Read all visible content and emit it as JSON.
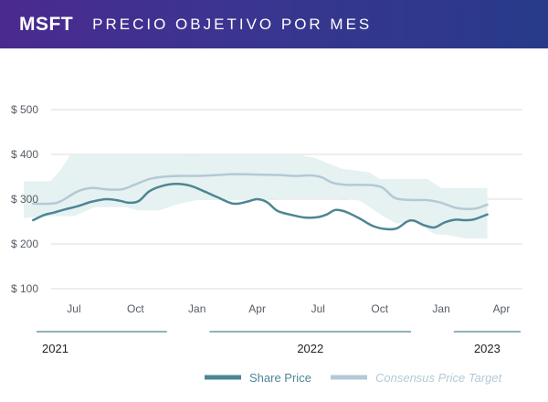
{
  "header": {
    "ticker": "MSFT",
    "title": "PRECIO OBJETIVO POR MES"
  },
  "colors": {
    "share_price": "#4d8595",
    "consensus": "#b4c9d6",
    "band": "#e6f2f1",
    "grid": "#dcdcdc",
    "header_left": "#4a2a8f",
    "header_right": "#283a8a"
  },
  "chart_data": {
    "type": "line",
    "y_ticks": [
      "$ 100",
      "$ 200",
      "$ 300",
      "$ 400",
      "$ 500"
    ],
    "y_tick_values": [
      100,
      200,
      300,
      400,
      500
    ],
    "ylim": [
      100,
      500
    ],
    "x_range": [
      "2021-05-01",
      "2023-04-30"
    ],
    "x_tick_labels": [
      {
        "label": "Jul",
        "date": "2021-07-15"
      },
      {
        "label": "Oct",
        "date": "2021-10-15"
      },
      {
        "label": "Jan",
        "date": "2022-01-15"
      },
      {
        "label": "Apr",
        "date": "2022-04-15"
      },
      {
        "label": "Jul",
        "date": "2022-07-15"
      },
      {
        "label": "Oct",
        "date": "2022-10-15"
      },
      {
        "label": "Jan",
        "date": "2023-01-15"
      },
      {
        "label": "Apr",
        "date": "2023-04-15"
      }
    ],
    "years": [
      {
        "label": "2021",
        "start": "2021-05-01",
        "end": "2021-12-31"
      },
      {
        "label": "2022",
        "start": "2022-01-01",
        "end": "2022-12-31"
      },
      {
        "label": "2023",
        "start": "2023-01-01",
        "end": "2023-04-30"
      }
    ],
    "series": [
      {
        "name": "Share Price",
        "style": "solid",
        "points": [
          [
            "2021-05-15",
            253
          ],
          [
            "2021-06-01",
            265
          ],
          [
            "2021-06-15",
            270
          ],
          [
            "2021-07-01",
            277
          ],
          [
            "2021-07-20",
            284
          ],
          [
            "2021-08-10",
            294
          ],
          [
            "2021-09-01",
            300
          ],
          [
            "2021-09-20",
            297
          ],
          [
            "2021-10-05",
            292
          ],
          [
            "2021-10-20",
            296
          ],
          [
            "2021-11-05",
            318
          ],
          [
            "2021-11-25",
            330
          ],
          [
            "2021-12-15",
            334
          ],
          [
            "2022-01-05",
            330
          ],
          [
            "2022-01-25",
            318
          ],
          [
            "2022-02-15",
            304
          ],
          [
            "2022-03-10",
            290
          ],
          [
            "2022-03-30",
            294
          ],
          [
            "2022-04-15",
            300
          ],
          [
            "2022-04-30",
            293
          ],
          [
            "2022-05-15",
            274
          ],
          [
            "2022-06-05",
            265
          ],
          [
            "2022-06-25",
            259
          ],
          [
            "2022-07-15",
            260
          ],
          [
            "2022-07-28",
            266
          ],
          [
            "2022-08-10",
            276
          ],
          [
            "2022-08-25",
            272
          ],
          [
            "2022-09-15",
            257
          ],
          [
            "2022-10-05",
            240
          ],
          [
            "2022-10-25",
            233
          ],
          [
            "2022-11-10",
            235
          ],
          [
            "2022-11-25",
            250
          ],
          [
            "2022-12-05",
            252
          ],
          [
            "2022-12-20",
            242
          ],
          [
            "2023-01-05",
            237
          ],
          [
            "2023-01-20",
            248
          ],
          [
            "2023-02-05",
            254
          ],
          [
            "2023-02-20",
            253
          ],
          [
            "2023-03-05",
            255
          ],
          [
            "2023-03-25",
            266
          ]
        ]
      },
      {
        "name": "Consensus Price Target",
        "style": "italic-legend",
        "points": [
          [
            "2021-05-15",
            290
          ],
          [
            "2021-06-10",
            290
          ],
          [
            "2021-06-25",
            295
          ],
          [
            "2021-07-20",
            317
          ],
          [
            "2021-08-10",
            325
          ],
          [
            "2021-09-01",
            322
          ],
          [
            "2021-09-25",
            322
          ],
          [
            "2021-10-15",
            333
          ],
          [
            "2021-11-05",
            345
          ],
          [
            "2021-11-25",
            350
          ],
          [
            "2021-12-20",
            352
          ],
          [
            "2022-01-15",
            352
          ],
          [
            "2022-02-15",
            354
          ],
          [
            "2022-03-15",
            356
          ],
          [
            "2022-04-15",
            355
          ],
          [
            "2022-05-15",
            354
          ],
          [
            "2022-06-10",
            352
          ],
          [
            "2022-07-05",
            353
          ],
          [
            "2022-07-20",
            349
          ],
          [
            "2022-08-05",
            337
          ],
          [
            "2022-08-25",
            332
          ],
          [
            "2022-09-15",
            332
          ],
          [
            "2022-10-05",
            331
          ],
          [
            "2022-10-20",
            325
          ],
          [
            "2022-11-05",
            304
          ],
          [
            "2022-11-20",
            299
          ],
          [
            "2022-12-10",
            298
          ],
          [
            "2022-12-25",
            298
          ],
          [
            "2023-01-15",
            292
          ],
          [
            "2023-02-05",
            281
          ],
          [
            "2023-02-25",
            278
          ],
          [
            "2023-03-10",
            280
          ],
          [
            "2023-03-25",
            288
          ]
        ]
      }
    ],
    "band": {
      "upper": [
        [
          "2021-05-01",
          340
        ],
        [
          "2021-06-10",
          340
        ],
        [
          "2021-06-25",
          365
        ],
        [
          "2021-07-10",
          400
        ],
        [
          "2021-12-15",
          400
        ],
        [
          "2022-02-01",
          398
        ],
        [
          "2022-06-20",
          398
        ],
        [
          "2022-07-10",
          392
        ],
        [
          "2022-08-20",
          368
        ],
        [
          "2022-09-30",
          360
        ],
        [
          "2022-10-15",
          345
        ],
        [
          "2022-12-25",
          345
        ],
        [
          "2023-01-15",
          325
        ],
        [
          "2023-03-25",
          325
        ]
      ],
      "lower": [
        [
          "2021-05-01",
          258
        ],
        [
          "2021-06-10",
          262
        ],
        [
          "2021-07-15",
          262
        ],
        [
          "2021-08-15",
          282
        ],
        [
          "2021-09-30",
          282
        ],
        [
          "2021-10-20",
          275
        ],
        [
          "2021-11-20",
          275
        ],
        [
          "2021-12-20",
          290
        ],
        [
          "2022-01-15",
          298
        ],
        [
          "2022-04-15",
          298
        ],
        [
          "2022-05-15",
          302
        ],
        [
          "2022-08-15",
          302
        ],
        [
          "2022-09-15",
          297
        ],
        [
          "2022-10-20",
          262
        ],
        [
          "2022-11-10",
          245
        ],
        [
          "2022-12-05",
          252
        ],
        [
          "2023-01-05",
          222
        ],
        [
          "2023-01-25",
          220
        ],
        [
          "2023-02-20",
          212
        ],
        [
          "2023-03-25",
          212
        ]
      ]
    },
    "grid": true,
    "legend_position": "bottom-right"
  }
}
